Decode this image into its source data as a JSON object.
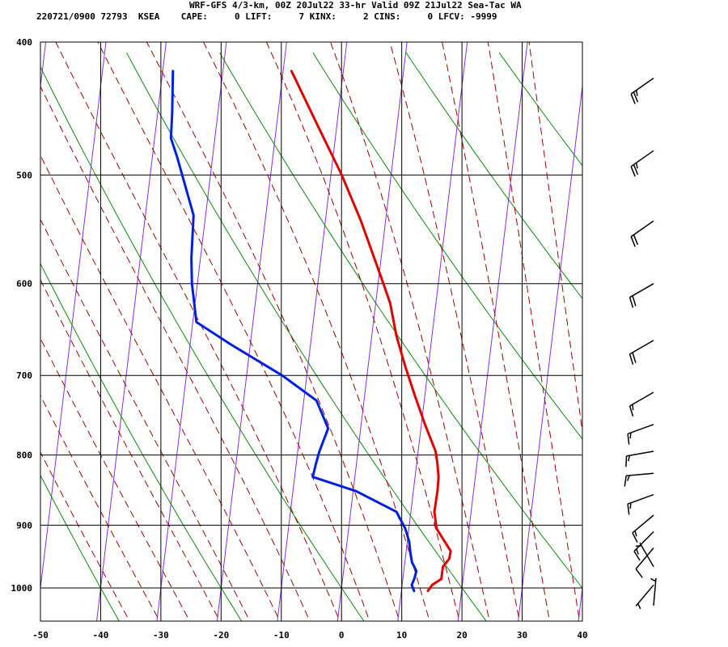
{
  "header": {
    "title": "WRF-GFS 4/3-km, 00Z 20Jul22 33-hr Valid 09Z 21Jul22 Sea-Tac WA",
    "subtitle": "220721/0900 72793  KSEA    CAPE:     0 LIFT:     7 KINX:     2 CINS:     0 LFCV: -9999"
  },
  "chart_data": {
    "type": "line",
    "title": "WRF-GFS 4/3-km, 00Z 20Jul22 33-hr Valid 09Z 21Jul22 Sea-Tac WA",
    "station": "KSEA",
    "station_id": "72793",
    "indices": {
      "CAPE": 0,
      "LIFT": 7,
      "KINX": 2,
      "CINS": 0,
      "LFCV": -9999
    },
    "x_ticks": [
      -50,
      -40,
      -30,
      -20,
      -10,
      0,
      10,
      20,
      30,
      40
    ],
    "y_ticks": [
      400,
      500,
      600,
      700,
      800,
      900,
      1000
    ],
    "xlim": [
      -50,
      40
    ],
    "ylim": [
      1040,
      400
    ],
    "y_scale": "log",
    "grid": true,
    "colors": {
      "temperature": "#e00000",
      "dewpoint": "#0020e0",
      "isotherm": "#8a2be2",
      "dry_adiabat": "#0a8a0a",
      "moist_adiabat": "#a00000",
      "grid": "#000000"
    },
    "series": [
      {
        "key": "temperature",
        "points": [
          [
            1005,
            14.4
          ],
          [
            995,
            15.0
          ],
          [
            985,
            16.4
          ],
          [
            965,
            16.4
          ],
          [
            952,
            17.3
          ],
          [
            940,
            17.4
          ],
          [
            925,
            16.2
          ],
          [
            905,
            14.6
          ],
          [
            880,
            13.9
          ],
          [
            850,
            14.0
          ],
          [
            830,
            13.9
          ],
          [
            810,
            13.4
          ],
          [
            795,
            12.9
          ],
          [
            760,
            10.6
          ],
          [
            725,
            8.4
          ],
          [
            690,
            6.2
          ],
          [
            655,
            4.1
          ],
          [
            620,
            2.4
          ],
          [
            595,
            0.5
          ],
          [
            540,
            -4.1
          ],
          [
            500,
            -8.2
          ],
          [
            460,
            -13.2
          ],
          [
            420,
            -18.6
          ]
        ]
      },
      {
        "key": "dewpoint",
        "points": [
          [
            1005,
            12.1
          ],
          [
            995,
            11.6
          ],
          [
            985,
            11.9
          ],
          [
            972,
            12.1
          ],
          [
            958,
            11.2
          ],
          [
            945,
            10.8
          ],
          [
            925,
            10.3
          ],
          [
            905,
            9.4
          ],
          [
            880,
            7.6
          ],
          [
            850,
            0.5
          ],
          [
            830,
            -7.0
          ],
          [
            810,
            -6.7
          ],
          [
            795,
            -6.4
          ],
          [
            765,
            -5.4
          ],
          [
            730,
            -7.9
          ],
          [
            700,
            -14.1
          ],
          [
            665,
            -23.1
          ],
          [
            640,
            -29.4
          ],
          [
            600,
            -30.9
          ],
          [
            575,
            -31.5
          ],
          [
            535,
            -32.0
          ],
          [
            485,
            -35.9
          ],
          [
            470,
            -37.3
          ],
          [
            450,
            -37.6
          ],
          [
            420,
            -38.3
          ]
        ]
      }
    ],
    "wind_barbs": [
      {
        "p": 425,
        "dir": 235,
        "spd": 25
      },
      {
        "p": 480,
        "dir": 235,
        "spd": 25
      },
      {
        "p": 540,
        "dir": 235,
        "spd": 20
      },
      {
        "p": 600,
        "dir": 240,
        "spd": 20
      },
      {
        "p": 660,
        "dir": 240,
        "spd": 20
      },
      {
        "p": 720,
        "dir": 240,
        "spd": 15
      },
      {
        "p": 760,
        "dir": 250,
        "spd": 15
      },
      {
        "p": 795,
        "dir": 260,
        "spd": 15
      },
      {
        "p": 825,
        "dir": 265,
        "spd": 15
      },
      {
        "p": 855,
        "dir": 250,
        "spd": 15
      },
      {
        "p": 885,
        "dir": 230,
        "spd": 15
      },
      {
        "p": 910,
        "dir": 225,
        "spd": 15
      },
      {
        "p": 935,
        "dir": 220,
        "spd": 10
      },
      {
        "p": 965,
        "dir": 330,
        "spd": 5
      },
      {
        "p": 995,
        "dir": 220,
        "spd": 5
      },
      {
        "p": 1030,
        "dir": 5,
        "spd": 5
      }
    ]
  }
}
